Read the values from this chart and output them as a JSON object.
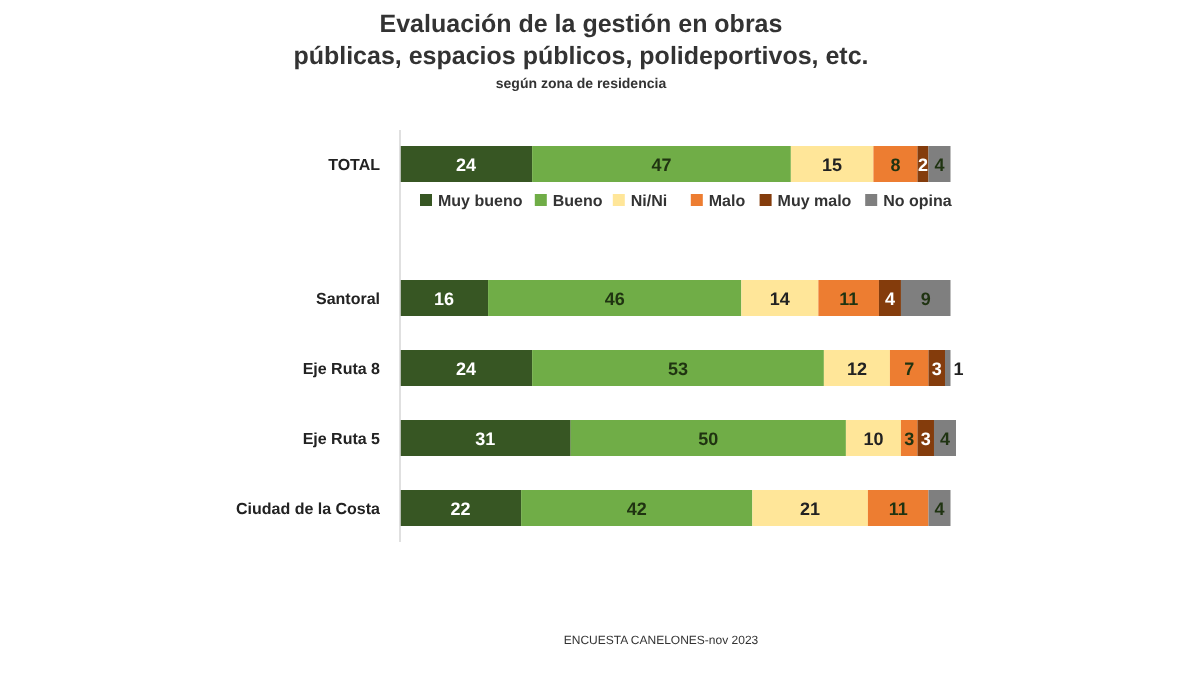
{
  "chart_data": {
    "type": "bar",
    "orientation": "horizontal",
    "stacked": true,
    "data_labels": true,
    "legend": "top",
    "title": "Evaluación de la gestión en obras\npúblicas, espacios públicos, polideportivos, etc.",
    "subtitle": "según zona de residencia",
    "annotations": [
      "ENCUESTA CANELONES-nov 2023"
    ],
    "categories": [
      "TOTAL",
      "Santoral",
      "Eje Ruta 8",
      "Eje Ruta 5",
      "Ciudad de la Costa"
    ],
    "series": [
      {
        "name": "Muy bueno",
        "color": "#375623",
        "values": [
          24,
          16,
          24,
          31,
          22
        ]
      },
      {
        "name": "Bueno",
        "color": "#70ad47",
        "values": [
          47,
          46,
          53,
          50,
          42
        ]
      },
      {
        "name": "Ni/Ni",
        "color": "#ffe699",
        "values": [
          15,
          14,
          12,
          10,
          21
        ]
      },
      {
        "name": "Malo",
        "color": "#ed7d31",
        "values": [
          8,
          11,
          7,
          3,
          11
        ]
      },
      {
        "name": "Muy malo",
        "color": "#843c0c",
        "values": [
          2,
          4,
          3,
          3,
          null
        ]
      },
      {
        "name": "No opina",
        "color": "#7f7f7f",
        "values": [
          4,
          9,
          1,
          4,
          4
        ]
      }
    ]
  }
}
